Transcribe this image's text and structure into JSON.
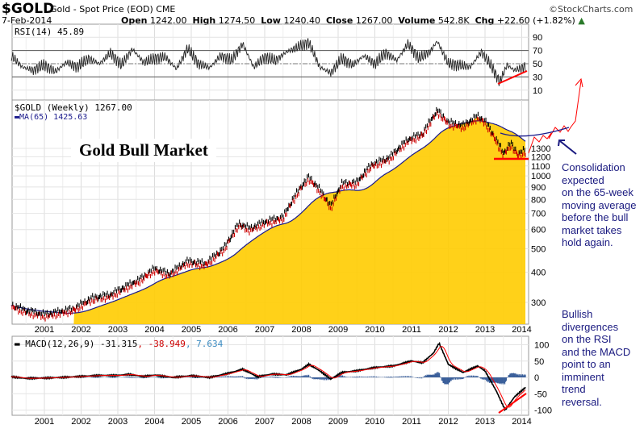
{
  "header": {
    "symbol": "$GOLD",
    "name": "Gold - Spot Price (EOD)",
    "exchange": "CME",
    "date": "7-Feb-2014",
    "watermark": "©StockCharts.com",
    "open_label": "Open",
    "open": "1242.00",
    "high_label": "High",
    "high": "1274.50",
    "low_label": "Low",
    "low": "1240.40",
    "close_label": "Close",
    "close": "1267.00",
    "volume_label": "Volume",
    "volume": "542.8K",
    "chg_label": "Chg",
    "chg": "+22.60 (+1.82%)"
  },
  "colors": {
    "price_up": "#000000",
    "price_down": "#cc0000",
    "ma": "#1a1a8c",
    "fill": "#ffcc00",
    "annotation": "#ff0000",
    "note": "#1a1a80",
    "macd_signal": "#ff0000",
    "macd_hist": "#3a5f9a"
  },
  "chart_data": [
    {
      "type": "line",
      "panel": "RSI",
      "legend": "RSI(14) 45.89",
      "yticks": [
        90,
        70,
        50,
        30,
        10
      ],
      "ylim": [
        0,
        100
      ],
      "levels": [
        70,
        50,
        30
      ],
      "x": [
        2000.1,
        2000.4,
        2000.7,
        2001.0,
        2001.3,
        2001.6,
        2001.9,
        2002.2,
        2002.5,
        2002.8,
        2003.1,
        2003.4,
        2003.7,
        2004.0,
        2004.3,
        2004.6,
        2004.9,
        2005.2,
        2005.5,
        2005.8,
        2006.1,
        2006.4,
        2006.7,
        2007.0,
        2007.3,
        2007.6,
        2007.9,
        2008.2,
        2008.5,
        2008.8,
        2009.1,
        2009.4,
        2009.7,
        2010.0,
        2010.3,
        2010.6,
        2010.9,
        2011.2,
        2011.5,
        2011.7,
        2012.0,
        2012.3,
        2012.6,
        2012.9,
        2013.2,
        2013.4,
        2013.6,
        2013.8,
        2014.1
      ],
      "values": [
        62,
        45,
        40,
        48,
        38,
        52,
        45,
        58,
        50,
        66,
        48,
        72,
        52,
        58,
        60,
        42,
        73,
        50,
        44,
        62,
        55,
        80,
        45,
        60,
        55,
        68,
        75,
        82,
        45,
        36,
        58,
        48,
        62,
        50,
        66,
        55,
        80,
        58,
        68,
        84,
        50,
        48,
        45,
        68,
        44,
        22,
        48,
        40,
        46
      ]
    },
    {
      "type": "candlestick",
      "panel": "Price",
      "legend": "$GOLD (Weekly) 1267.00",
      "ma_legend": "MA(65) 1425.63",
      "scale": "log",
      "yticks": [
        1300,
        1200,
        1100,
        1000,
        900,
        800,
        700,
        600,
        500,
        400,
        300
      ],
      "xticks": [
        "2001",
        "2002",
        "2003",
        "2004",
        "2005",
        "2006",
        "2007",
        "2008",
        "2009",
        "2010",
        "2011",
        "2012",
        "2013",
        "2014"
      ],
      "x": [
        2000.1,
        2000.5,
        2001.0,
        2001.3,
        2001.8,
        2002.3,
        2002.8,
        2003.2,
        2003.6,
        2004.0,
        2004.4,
        2004.9,
        2005.4,
        2005.9,
        2006.3,
        2006.6,
        2007.0,
        2007.5,
        2008.0,
        2008.2,
        2008.5,
        2008.8,
        2009.1,
        2009.5,
        2009.9,
        2010.4,
        2010.9,
        2011.3,
        2011.7,
        2012.0,
        2012.4,
        2012.8,
        2013.0,
        2013.3,
        2013.5,
        2013.7,
        2013.9,
        2014.1
      ],
      "values": [
        290,
        275,
        265,
        270,
        280,
        310,
        320,
        345,
        370,
        410,
        390,
        440,
        430,
        500,
        630,
        600,
        640,
        670,
        900,
        980,
        870,
        740,
        920,
        930,
        1100,
        1180,
        1400,
        1480,
        1850,
        1650,
        1600,
        1750,
        1670,
        1400,
        1230,
        1350,
        1220,
        1267
      ],
      "title_annotation": "Gold Bull Market"
    },
    {
      "type": "line",
      "panel": "MACD",
      "legend": "MACD(12,26,9) -31.315",
      "signal_legend": ", -38.949",
      "hist_legend": ", 7.634",
      "yticks": [
        100,
        50,
        0,
        -50,
        -100
      ],
      "ylim": [
        -110,
        125
      ],
      "x": [
        2000.1,
        2000.5,
        2001.0,
        2001.5,
        2002.0,
        2002.5,
        2003.0,
        2003.3,
        2003.7,
        2004.0,
        2004.5,
        2005.0,
        2005.5,
        2006.0,
        2006.4,
        2006.8,
        2007.2,
        2007.6,
        2008.0,
        2008.2,
        2008.5,
        2008.8,
        2009.1,
        2009.5,
        2010.0,
        2010.5,
        2011.0,
        2011.3,
        2011.6,
        2011.75,
        2012.0,
        2012.4,
        2012.8,
        2013.0,
        2013.3,
        2013.55,
        2013.8,
        2014.1
      ],
      "values": [
        2,
        -3,
        -2,
        0,
        3,
        6,
        6,
        9,
        3,
        7,
        0,
        5,
        0,
        12,
        25,
        2,
        10,
        8,
        25,
        40,
        20,
        -5,
        15,
        20,
        30,
        35,
        50,
        45,
        75,
        105,
        40,
        15,
        35,
        20,
        -40,
        -100,
        -60,
        -31
      ]
    }
  ],
  "annotations": {
    "note1": "Consolidation\nexpected\non the 65-week\nmoving average\nbefore the bull\nmarket takes\nhold again.",
    "note2": "Bullish\ndivergences\non the RSI\nand the MACD\npoint to an\nimminent\ntrend\nreversal."
  }
}
